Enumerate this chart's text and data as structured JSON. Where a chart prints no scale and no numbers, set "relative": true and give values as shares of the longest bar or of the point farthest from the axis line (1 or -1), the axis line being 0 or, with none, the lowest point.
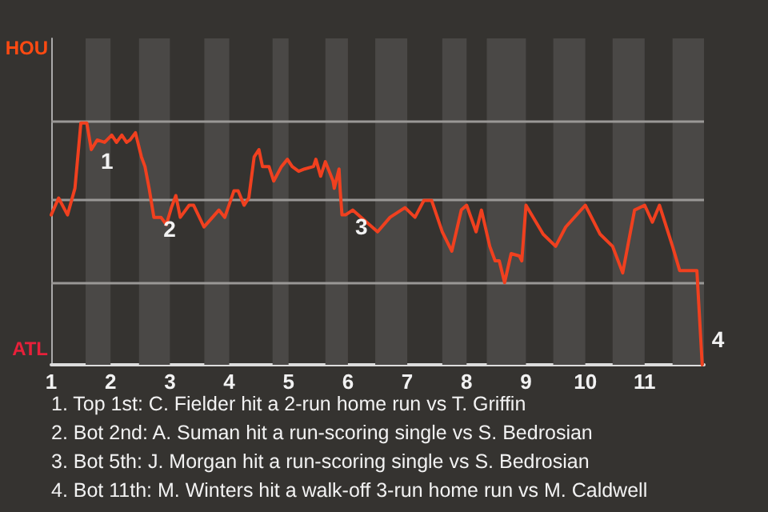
{
  "chart_data": {
    "type": "line",
    "x": [
      1,
      1.125,
      1.275,
      1.4,
      1.5,
      1.6,
      1.675,
      1.775,
      1.9,
      2.02,
      2.1,
      2.19,
      2.27,
      2.33,
      2.42,
      2.52,
      2.58,
      2.65,
      2.73,
      2.85,
      2.94,
      3.025,
      3.1,
      3.175,
      3.325,
      3.4,
      3.575,
      3.825,
      3.925,
      4.08,
      4.15,
      4.25,
      4.33,
      4.42,
      4.5,
      4.56,
      4.67,
      4.75,
      4.88,
      4.98,
      5.06,
      5.17,
      5.27,
      5.42,
      5.46,
      5.54,
      5.62,
      5.75,
      5.77,
      5.85,
      5.87,
      5.9,
      5.96,
      6.08,
      6.5,
      6.71,
      6.96,
      7.13,
      7.28,
      7.41,
      7.59,
      7.75,
      7.91,
      8,
      8.16,
      8.25,
      8.39,
      8.48,
      8.55,
      8.64,
      8.75,
      8.89,
      8.93,
      9,
      9.29,
      9.5,
      9.67,
      10,
      10.25,
      10.46,
      10.63,
      10.83,
      11,
      11.13,
      11.25,
      11.47,
      11.59,
      11.75,
      11.88,
      11.97
    ],
    "series": [
      {
        "color": "#f0401f",
        "values": [
          0.62,
          0.69,
          0.62,
          0.73,
          1,
          1,
          0.89,
          0.93,
          0.92,
          0.95,
          0.92,
          0.95,
          0.92,
          0.93,
          0.96,
          0.86,
          0.82,
          0.73,
          0.61,
          0.61,
          0.58,
          0.65,
          0.7,
          0.61,
          0.66,
          0.66,
          0.57,
          0.64,
          0.61,
          0.72,
          0.72,
          0.66,
          0.69,
          0.86,
          0.89,
          0.82,
          0.82,
          0.76,
          0.82,
          0.85,
          0.82,
          0.8,
          0.81,
          0.82,
          0.85,
          0.78,
          0.84,
          0.76,
          0.73,
          0.81,
          0.72,
          0.62,
          0.62,
          0.64,
          0.55,
          0.61,
          0.65,
          0.61,
          0.68,
          0.68,
          0.55,
          0.47,
          0.64,
          0.66,
          0.55,
          0.64,
          0.49,
          0.43,
          0.43,
          0.34,
          0.46,
          0.45,
          0.43,
          0.66,
          0.54,
          0.49,
          0.57,
          0.66,
          0.54,
          0.49,
          0.38,
          0.64,
          0.66,
          0.59,
          0.66,
          0.49,
          0.39,
          0.39,
          0.39,
          0
        ]
      }
    ],
    "relative": true,
    "xlim": [
      1,
      12
    ],
    "xticks": [
      1,
      2,
      3,
      4,
      5,
      6,
      7,
      8,
      9,
      10,
      11
    ],
    "ref_lines": [
      {
        "axis": "y",
        "value": 0.34,
        "color": "#9a9896"
      },
      {
        "axis": "y",
        "value": 0.68,
        "color": "#9a9896"
      },
      {
        "axis": "y",
        "value": 1.01,
        "color": "#9a9896"
      }
    ],
    "marker": "none",
    "bands": [
      {
        "axis": "x",
        "from": 1.58,
        "to": 2,
        "color": "#4a4846"
      },
      {
        "axis": "x",
        "from": 2.48,
        "to": 3,
        "color": "#4a4846"
      },
      {
        "axis": "x",
        "from": 3.58,
        "to": 4,
        "color": "#4a4846"
      },
      {
        "axis": "x",
        "from": 4.73,
        "to": 5,
        "color": "#4a4846"
      },
      {
        "axis": "x",
        "from": 5.62,
        "to": 6,
        "color": "#4a4846"
      },
      {
        "axis": "x",
        "from": 6.46,
        "to": 7,
        "color": "#4a4846"
      },
      {
        "axis": "x",
        "from": 7.59,
        "to": 8,
        "color": "#4a4846"
      },
      {
        "axis": "x",
        "from": 8.34,
        "to": 9,
        "color": "#4a4846"
      },
      {
        "axis": "x",
        "from": 9.46,
        "to": 10,
        "color": "#4a4846"
      },
      {
        "axis": "x",
        "from": 10.46,
        "to": 11,
        "color": "#4a4846"
      },
      {
        "axis": "x",
        "from": 11.47,
        "to": 12,
        "color": "#4a4846"
      }
    ],
    "annotations": [
      {
        "text": "1",
        "x": 1.675,
        "y": 0.89
      },
      {
        "text": "2",
        "x": 2.73,
        "y": 0.61
      },
      {
        "text": "3",
        "x": 5.96,
        "y": 0.62
      },
      {
        "text": "4",
        "x": 11.97,
        "y": 0
      },
      "HOU",
      "ATL",
      "1. Top 1st: C. Fielder hit a 2-run home run vs T. Griffin",
      "2. Bot 2nd: A. Suman hit a run-scoring single vs S. Bedrosian",
      "3. Bot 5th: J. Morgan hit a run-scoring single vs S. Bedrosian",
      "4. Bot 11th: M. Winters hit a walk-off 3-run home run vs M. Caldwell"
    ]
  }
}
